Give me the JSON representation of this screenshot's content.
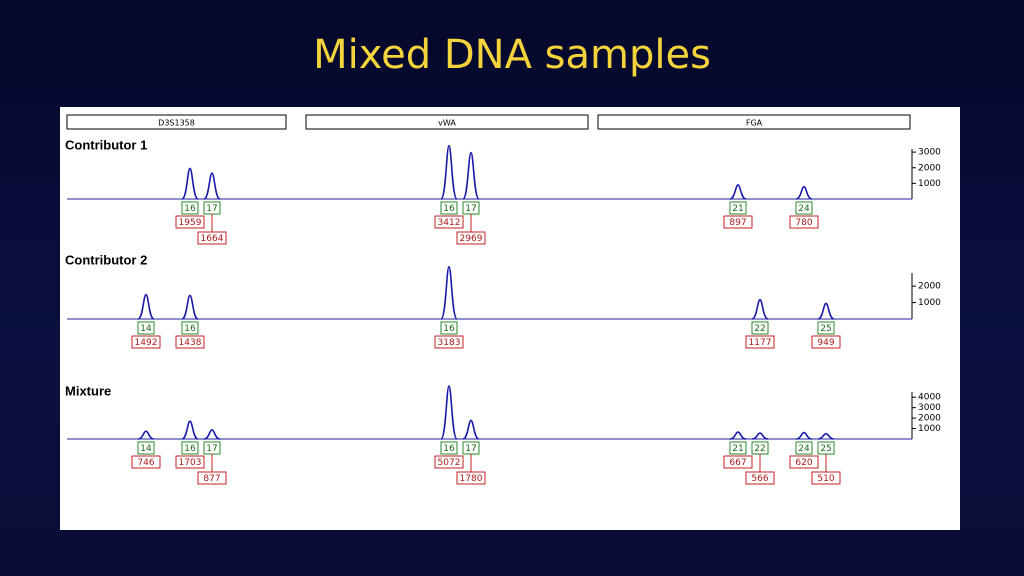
{
  "title": "Mixed DNA samples",
  "loci": [
    "D3S1358",
    "vWA",
    "FGA"
  ],
  "chart_data": [
    {
      "type": "peaks",
      "title": "Contributor 1",
      "ylim": [
        0,
        3200
      ],
      "yticks": [
        1000,
        2000,
        3000
      ],
      "loci": [
        [
          {
            "allele": 16,
            "value": 1959
          },
          {
            "allele": 17,
            "value": 1664
          }
        ],
        [
          {
            "allele": 16,
            "value": 3412
          },
          {
            "allele": 17,
            "value": 2969
          }
        ],
        [
          {
            "allele": 21,
            "value": 897
          },
          {
            "allele": 24,
            "value": 780
          }
        ]
      ]
    },
    {
      "type": "peaks",
      "title": "Contributor 2",
      "ylim": [
        0,
        2800
      ],
      "yticks": [
        1000,
        2000
      ],
      "loci": [
        [
          {
            "allele": 14,
            "value": 1492
          },
          {
            "allele": 16,
            "value": 1438
          }
        ],
        [
          {
            "allele": 16,
            "value": 3183
          }
        ],
        [
          {
            "allele": 22,
            "value": 1177
          },
          {
            "allele": 25,
            "value": 949
          }
        ]
      ]
    },
    {
      "type": "peaks",
      "title": "Mixture",
      "ylim": [
        0,
        4500
      ],
      "yticks": [
        1000,
        2000,
        3000,
        4000
      ],
      "loci": [
        [
          {
            "allele": 14,
            "value": 746
          },
          {
            "allele": 16,
            "value": 1703
          },
          {
            "allele": 17,
            "value": 877
          }
        ],
        [
          {
            "allele": 16,
            "value": 5072
          },
          {
            "allele": 17,
            "value": 1780
          }
        ],
        [
          {
            "allele": 21,
            "value": 667
          },
          {
            "allele": 22,
            "value": 566
          },
          {
            "allele": 24,
            "value": 620
          },
          {
            "allele": 25,
            "value": 510
          }
        ]
      ]
    }
  ]
}
